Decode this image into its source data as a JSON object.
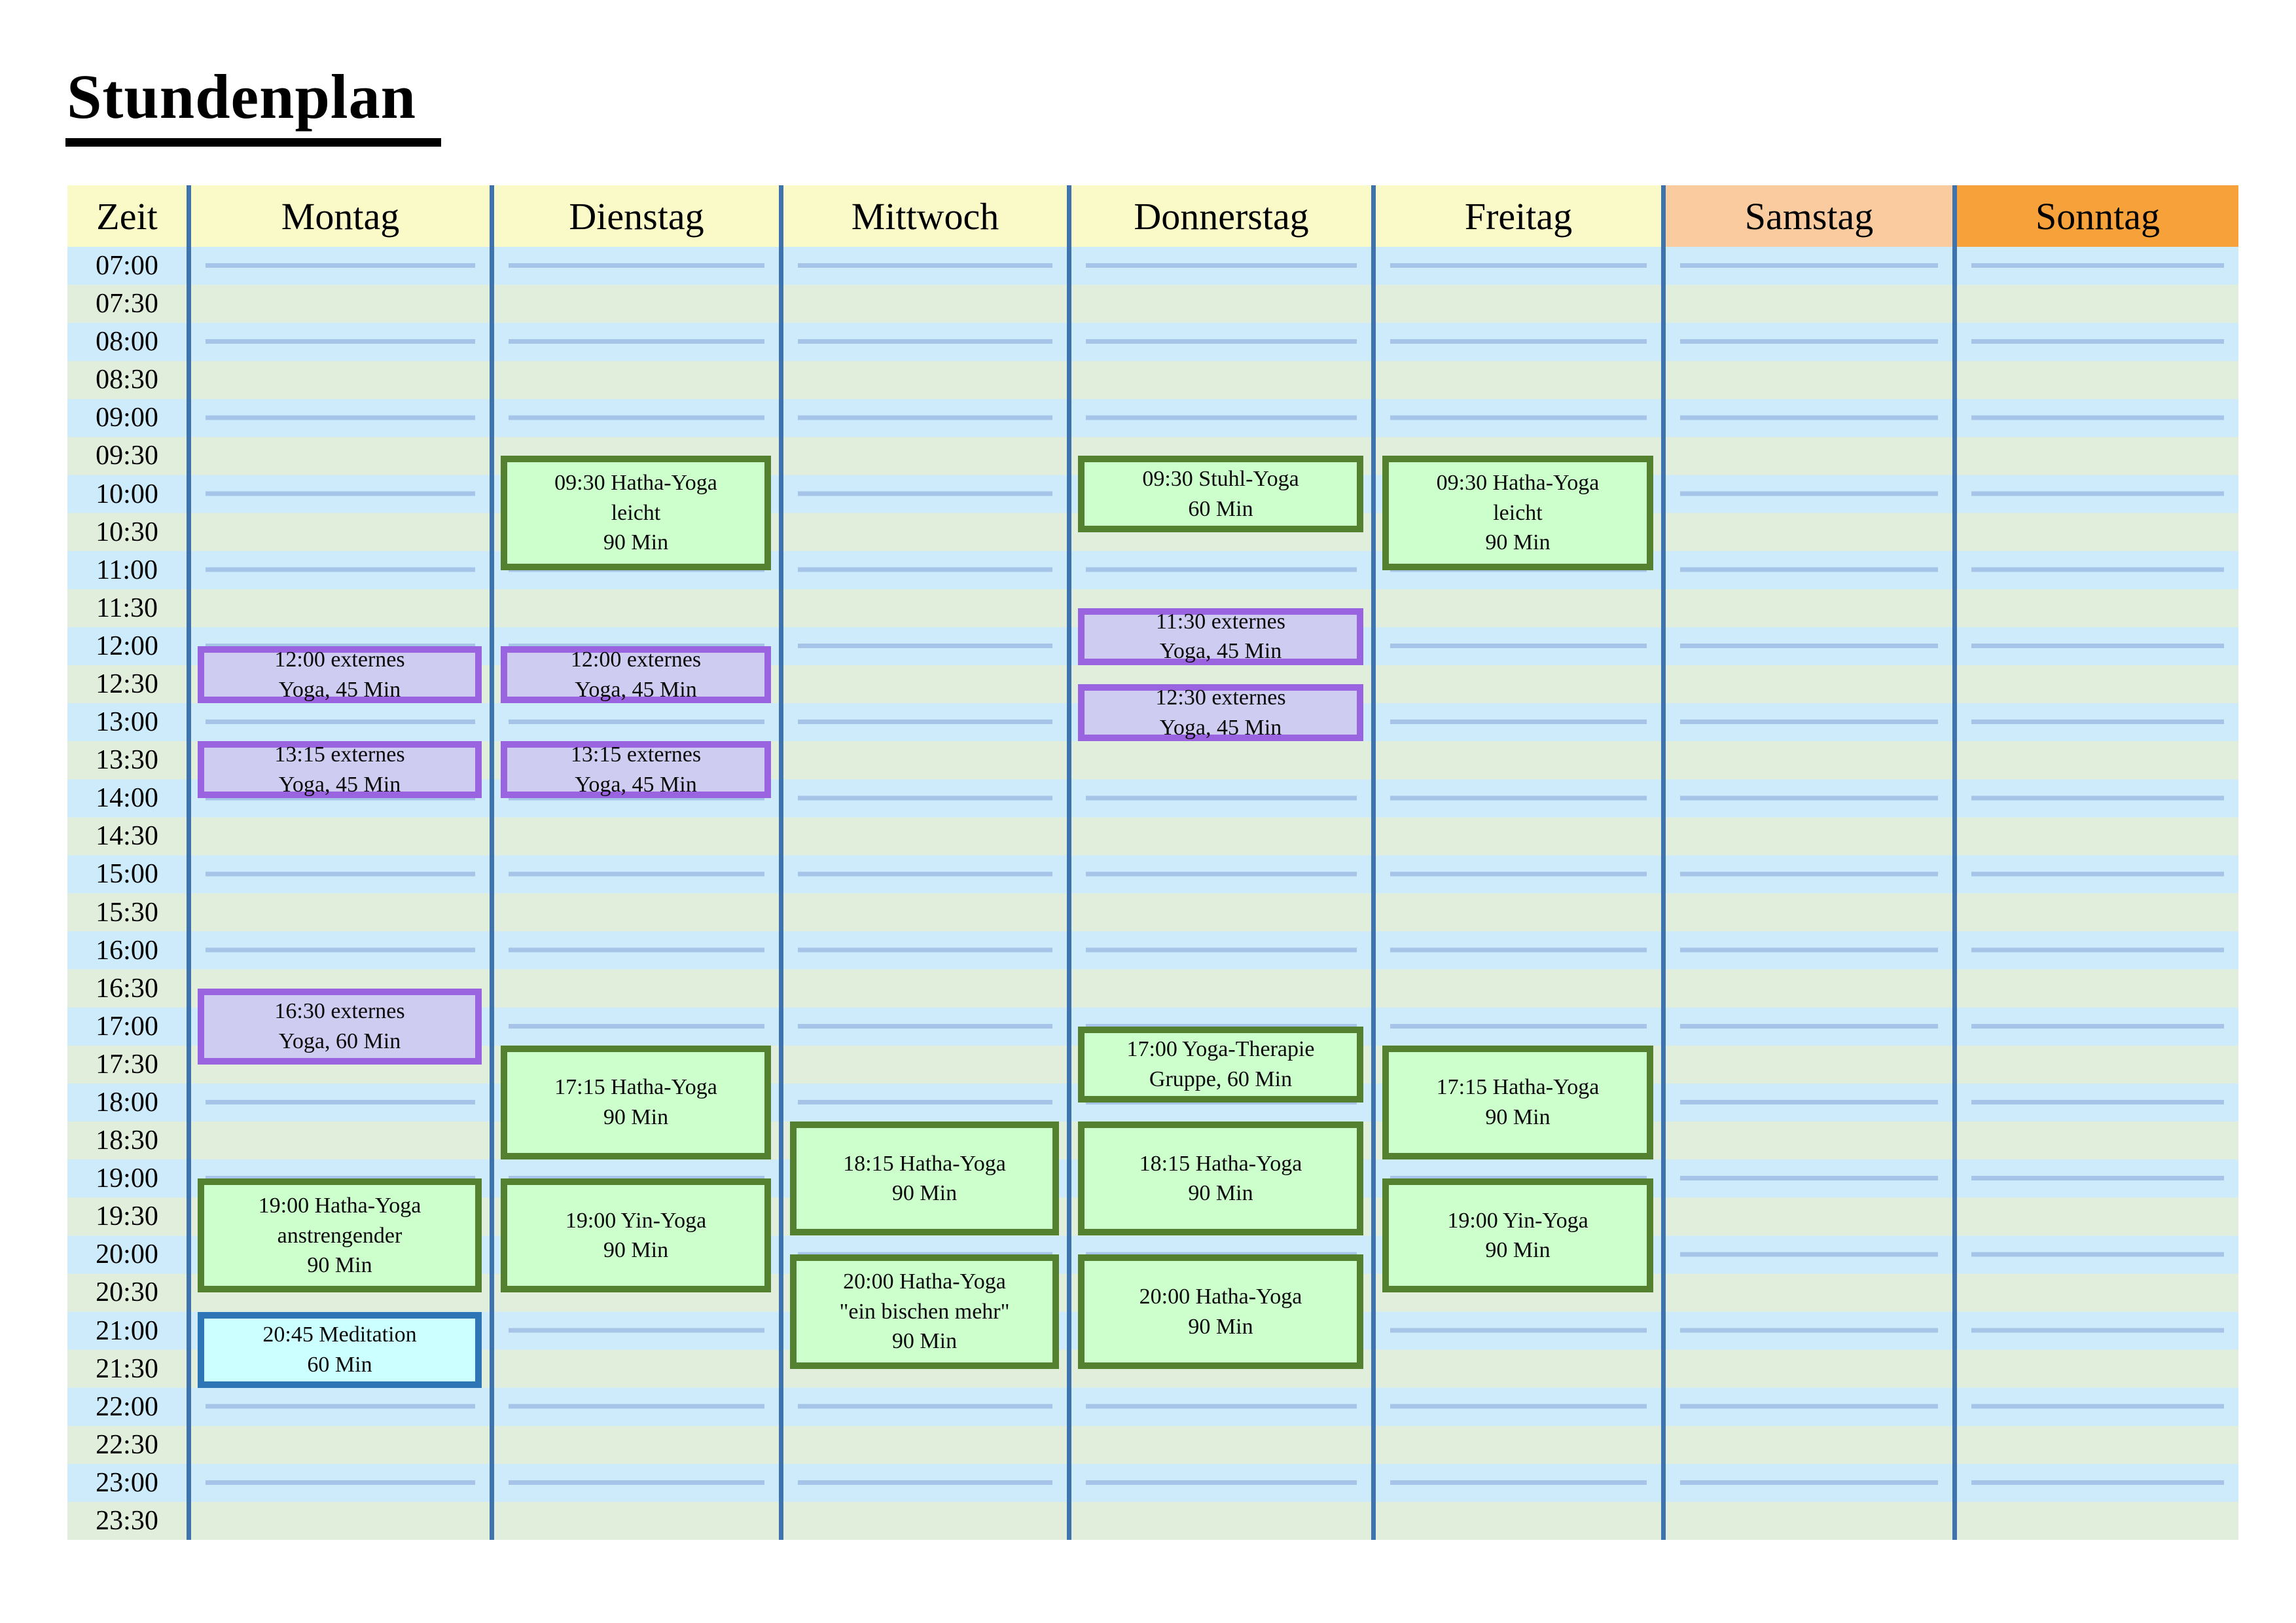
{
  "title": "Stundenplan",
  "header": {
    "time_label": "Zeit",
    "days": [
      "Montag",
      "Dienstag",
      "Mittwoch",
      "Donnerstag",
      "Freitag",
      "Samstag",
      "Sonntag"
    ]
  },
  "times": [
    "07:00",
    "07:30",
    "08:00",
    "08:30",
    "09:00",
    "09:30",
    "10:00",
    "10:30",
    "11:00",
    "11:30",
    "12:00",
    "12:30",
    "13:00",
    "13:30",
    "14:00",
    "14:30",
    "15:00",
    "15:30",
    "16:00",
    "16:30",
    "17:00",
    "17:30",
    "18:00",
    "18:30",
    "19:00",
    "19:30",
    "20:00",
    "20:30",
    "21:00",
    "21:30",
    "22:00",
    "22:30",
    "23:00",
    "23:30"
  ],
  "events": [
    {
      "day": "Montag",
      "start": "12:00",
      "duration_min": 45,
      "category": "externes",
      "lines": [
        "12:00 externes",
        "Yoga, 45 Min"
      ]
    },
    {
      "day": "Montag",
      "start": "13:15",
      "duration_min": 45,
      "category": "externes",
      "lines": [
        "13:15 externes",
        "Yoga, 45 Min"
      ]
    },
    {
      "day": "Montag",
      "start": "16:30",
      "duration_min": 60,
      "category": "externes",
      "lines": [
        "16:30 externes",
        "Yoga, 60 Min"
      ]
    },
    {
      "day": "Montag",
      "start": "19:00",
      "duration_min": 90,
      "category": "yoga",
      "lines": [
        "19:00 Hatha-Yoga",
        "anstrengender",
        "90 Min"
      ]
    },
    {
      "day": "Montag",
      "start": "20:45",
      "duration_min": 60,
      "category": "meditation",
      "lines": [
        "20:45 Meditation",
        "60 Min"
      ]
    },
    {
      "day": "Dienstag",
      "start": "09:30",
      "duration_min": 90,
      "category": "yoga",
      "lines": [
        "09:30 Hatha-Yoga",
        "leicht",
        "90 Min"
      ]
    },
    {
      "day": "Dienstag",
      "start": "12:00",
      "duration_min": 45,
      "category": "externes",
      "lines": [
        "12:00 externes",
        "Yoga, 45 Min"
      ]
    },
    {
      "day": "Dienstag",
      "start": "13:15",
      "duration_min": 45,
      "category": "externes",
      "lines": [
        "13:15 externes",
        "Yoga, 45 Min"
      ]
    },
    {
      "day": "Dienstag",
      "start": "17:15",
      "duration_min": 90,
      "category": "yoga",
      "lines": [
        "17:15 Hatha-Yoga",
        "90 Min"
      ]
    },
    {
      "day": "Dienstag",
      "start": "19:00",
      "duration_min": 90,
      "category": "yoga",
      "lines": [
        "19:00 Yin-Yoga",
        "90 Min"
      ]
    },
    {
      "day": "Mittwoch",
      "start": "18:15",
      "duration_min": 90,
      "category": "yoga",
      "lines": [
        "18:15 Hatha-Yoga",
        "90 Min"
      ]
    },
    {
      "day": "Mittwoch",
      "start": "20:00",
      "duration_min": 90,
      "category": "yoga",
      "lines": [
        "20:00 Hatha-Yoga",
        "\"ein bischen mehr\"",
        "90 Min"
      ]
    },
    {
      "day": "Donnerstag",
      "start": "09:30",
      "duration_min": 60,
      "category": "yoga",
      "lines": [
        "09:30 Stuhl-Yoga",
        "60 Min"
      ]
    },
    {
      "day": "Donnerstag",
      "start": "11:30",
      "duration_min": 45,
      "category": "externes",
      "lines": [
        "11:30 externes",
        "Yoga, 45 Min"
      ]
    },
    {
      "day": "Donnerstag",
      "start": "12:30",
      "duration_min": 45,
      "category": "externes",
      "lines": [
        "12:30 externes",
        "Yoga, 45 Min"
      ]
    },
    {
      "day": "Donnerstag",
      "start": "17:00",
      "duration_min": 60,
      "category": "yoga",
      "lines": [
        "17:00 Yoga-Therapie",
        "Gruppe, 60 Min"
      ]
    },
    {
      "day": "Donnerstag",
      "start": "18:15",
      "duration_min": 90,
      "category": "yoga",
      "lines": [
        "18:15 Hatha-Yoga",
        "90 Min"
      ]
    },
    {
      "day": "Donnerstag",
      "start": "20:00",
      "duration_min": 90,
      "category": "yoga",
      "lines": [
        "20:00 Hatha-Yoga",
        "90 Min"
      ]
    },
    {
      "day": "Freitag",
      "start": "09:30",
      "duration_min": 90,
      "category": "yoga",
      "lines": [
        "09:30 Hatha-Yoga",
        "leicht",
        "90 Min"
      ]
    },
    {
      "day": "Freitag",
      "start": "17:15",
      "duration_min": 90,
      "category": "yoga",
      "lines": [
        "17:15 Hatha-Yoga",
        "90 Min"
      ]
    },
    {
      "day": "Freitag",
      "start": "19:00",
      "duration_min": 90,
      "category": "yoga",
      "lines": [
        "19:00 Yin-Yoga",
        "90 Min"
      ]
    }
  ],
  "colors": {
    "grid_border": "#3F73AE",
    "row_blue": "#CDEBFB",
    "row_green": "#E2EEDC",
    "hour_line": "#A5C4E8",
    "header_weekday_bg": "#FAFAC8",
    "header_samstag_bg": "#FACB9E",
    "header_sonntag_bg": "#F7A13B",
    "event_yoga_bg": "#CCFFCC",
    "event_yoga_border": "#54812F",
    "event_externes_bg": "#CFCCF2",
    "event_externes_border": "#9A63E0",
    "event_meditation_bg": "#CCFFFF",
    "event_meditation_border": "#2E75B6"
  }
}
